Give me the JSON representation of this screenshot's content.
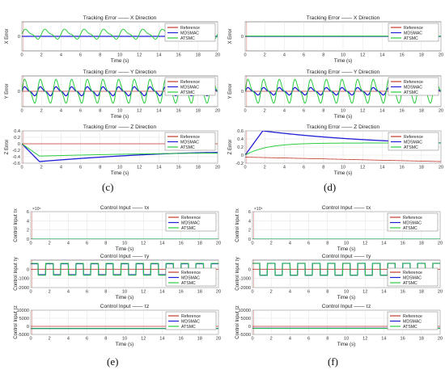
{
  "figure": {
    "panel_labels": [
      "(c)",
      "(d)",
      "(e)",
      "(f)"
    ],
    "legend": [
      "Reference",
      "MDSMAC",
      "ATSMC"
    ],
    "colors": {
      "Reference": "#c0392b",
      "MDSMAC": "#1f1fd6",
      "ATSMC": "#2ecc40"
    }
  },
  "chart_data": [
    {
      "type": "line",
      "panel": "c",
      "title": "Tracking Error —— X Direction",
      "xlabel": "Time (s)",
      "ylabel": "X Error",
      "xlim": [
        0,
        20
      ],
      "ylim": [
        -1,
        1
      ],
      "yticks": [
        "0"
      ],
      "xticks": [
        "0",
        "2",
        "4",
        "6",
        "8",
        "10",
        "12",
        "14",
        "16",
        "18",
        "20"
      ],
      "legend": "top-right",
      "grid": true,
      "series": [
        {
          "name": "Reference",
          "kind": "flat",
          "value": 0
        },
        {
          "name": "MDSMAC",
          "kind": "flat",
          "value": 0
        },
        {
          "name": "ATSMC",
          "kind": "osc",
          "amp": 0.35,
          "period": 2.0,
          "bias": 0.15
        }
      ]
    },
    {
      "type": "line",
      "panel": "c",
      "title": "Tracking Error —— Y Direction",
      "xlabel": "Time (s)",
      "ylabel": "Y Error",
      "xlim": [
        0,
        20
      ],
      "ylim": [
        -1,
        1
      ],
      "yticks": [
        "0"
      ],
      "xticks": [
        "0",
        "2",
        "4",
        "6",
        "8",
        "10",
        "12",
        "14",
        "16",
        "18",
        "20"
      ],
      "legend": "top-right",
      "grid": true,
      "series": [
        {
          "name": "Reference",
          "kind": "flat",
          "value": 0
        },
        {
          "name": "MDSMAC",
          "kind": "osc",
          "amp": 0.3,
          "period": 1.6,
          "bias": 0
        },
        {
          "name": "ATSMC",
          "kind": "osc",
          "amp": 0.8,
          "period": 1.6,
          "bias": 0
        }
      ]
    },
    {
      "type": "line",
      "panel": "c",
      "title": "Tracking Error —— Z Direction",
      "xlabel": "Time (s)",
      "ylabel": "Z Error",
      "xlim": [
        0,
        20
      ],
      "ylim": [
        -0.6,
        0.4
      ],
      "yticks": [
        "0.4",
        "0.2",
        "0",
        "-0.2",
        "-0.4",
        "-0.6"
      ],
      "xticks": [
        "0",
        "2",
        "4",
        "6",
        "8",
        "10",
        "12",
        "14",
        "16",
        "18",
        "20"
      ],
      "legend": "top-right",
      "grid": true,
      "series": [
        {
          "name": "Reference",
          "kind": "flat",
          "value": 0
        },
        {
          "name": "MDSMAC",
          "kind": "decay",
          "x0": 1.8,
          "y0": -0.55,
          "yend": -0.27
        },
        {
          "name": "ATSMC",
          "kind": "decay",
          "x0": 1.8,
          "y0": -0.38,
          "yend": -0.29
        }
      ]
    },
    {
      "type": "line",
      "panel": "d",
      "title": "Tracking Error —— X Direction",
      "xlabel": "Time (s)",
      "ylabel": "X Error",
      "xlim": [
        0,
        20
      ],
      "ylim": [
        -1,
        1
      ],
      "yticks": [
        "0"
      ],
      "xticks": [
        "0",
        "2",
        "4",
        "6",
        "8",
        "10",
        "12",
        "14",
        "16",
        "18",
        "20"
      ],
      "legend": "top-right",
      "grid": true,
      "series": [
        {
          "name": "Reference",
          "kind": "flat",
          "value": 0
        },
        {
          "name": "MDSMAC",
          "kind": "flat",
          "value": 0
        },
        {
          "name": "ATSMC",
          "kind": "flat",
          "value": 0.02
        }
      ]
    },
    {
      "type": "line",
      "panel": "d",
      "title": "Tracking Error —— Y Direction",
      "xlabel": "Time (s)",
      "ylabel": "Y Error",
      "xlim": [
        0,
        20
      ],
      "ylim": [
        -1,
        1
      ],
      "yticks": [
        "0"
      ],
      "xticks": [
        "0",
        "2",
        "4",
        "6",
        "8",
        "10",
        "12",
        "14",
        "16",
        "18",
        "20"
      ],
      "legend": "top-right",
      "grid": true,
      "series": [
        {
          "name": "Reference",
          "kind": "flat",
          "value": 0
        },
        {
          "name": "MDSMAC",
          "kind": "osc",
          "amp": 0.25,
          "period": 1.6,
          "bias": 0
        },
        {
          "name": "ATSMC",
          "kind": "osc",
          "amp": 0.8,
          "period": 1.6,
          "bias": 0
        }
      ]
    },
    {
      "type": "line",
      "panel": "d",
      "title": "Tracking Error —— Z Direction",
      "xlabel": "Time (s)",
      "ylabel": "Z Error",
      "xlim": [
        0,
        20
      ],
      "ylim": [
        -0.2,
        0.6
      ],
      "yticks": [
        "0.6",
        "0.4",
        "0.2",
        "0",
        "-0.2"
      ],
      "xticks": [
        "0",
        "2",
        "4",
        "6",
        "8",
        "10",
        "12",
        "14",
        "16",
        "18",
        "20"
      ],
      "legend": "top-right",
      "grid": true,
      "series": [
        {
          "name": "Reference",
          "kind": "drift",
          "y0": -0.05,
          "yend": -0.16
        },
        {
          "name": "MDSMAC",
          "kind": "peak",
          "x0": 1.8,
          "ypeak": 0.6,
          "yend": 0.3
        },
        {
          "name": "ATSMC",
          "kind": "rise",
          "yend": 0.3
        }
      ]
    },
    {
      "type": "line",
      "panel": "e",
      "title": "Control Input —— τx",
      "xlabel": "Time (s)",
      "ylabel": "Control Input τx",
      "xlim": [
        0,
        20
      ],
      "ylim": [
        0,
        6
      ],
      "multiplier": "×10⁵",
      "yticks": [
        "6",
        "4",
        "2",
        "0"
      ],
      "xticks": [
        "0",
        "2",
        "4",
        "6",
        "8",
        "10",
        "12",
        "14",
        "16",
        "18",
        "20"
      ],
      "legend": "top-right",
      "grid": true,
      "series": [
        {
          "name": "Reference",
          "kind": "flat",
          "value": 0
        },
        {
          "name": "MDSMAC",
          "kind": "flat",
          "value": 0
        },
        {
          "name": "ATSMC",
          "kind": "flat",
          "value": 0
        }
      ]
    },
    {
      "type": "line",
      "panel": "e",
      "title": "Control Input —— τy",
      "xlabel": "Time (s)",
      "ylabel": "Control Input τy",
      "xlim": [
        0,
        20
      ],
      "ylim": [
        -2000,
        1000
      ],
      "yticks": [
        "0",
        "-1000",
        "-2000"
      ],
      "xticks": [
        "0",
        "2",
        "4",
        "6",
        "8",
        "10",
        "12",
        "14",
        "16",
        "18",
        "20"
      ],
      "legend": "right",
      "grid": true,
      "series": [
        {
          "name": "Reference",
          "kind": "flat",
          "value": 0
        },
        {
          "name": "MDSMAC",
          "kind": "square",
          "amp": 600,
          "period": 1.6,
          "bias": 0
        },
        {
          "name": "ATSMC",
          "kind": "square",
          "amp": 650,
          "period": 1.6,
          "bias": 0
        }
      ]
    },
    {
      "type": "line",
      "panel": "e",
      "title": "Control Input —— τz",
      "xlabel": "Time (s)",
      "ylabel": "Control Input τz",
      "xlim": [
        0,
        20
      ],
      "ylim": [
        -5000,
        10000
      ],
      "yticks": [
        "10000",
        "5000",
        "0",
        "-5000"
      ],
      "xticks": [
        "0",
        "2",
        "4",
        "6",
        "8",
        "10",
        "12",
        "14",
        "16",
        "18",
        "20"
      ],
      "legend": "top-right",
      "grid": true,
      "series": [
        {
          "name": "Reference",
          "kind": "flat",
          "value": 0
        },
        {
          "name": "MDSMAC",
          "kind": "flat",
          "value": -1300
        },
        {
          "name": "ATSMC",
          "kind": "flat",
          "value": -1400
        }
      ]
    },
    {
      "type": "line",
      "panel": "f",
      "title": "Control Input —— τx",
      "xlabel": "Time (s)",
      "ylabel": "Control Input τx",
      "xlim": [
        0,
        20
      ],
      "ylim": [
        0,
        6
      ],
      "multiplier": "×10⁵",
      "yticks": [
        "6",
        "4",
        "2",
        "0"
      ],
      "xticks": [
        "0",
        "2",
        "4",
        "6",
        "8",
        "10",
        "12",
        "14",
        "16",
        "18",
        "20"
      ],
      "legend": "top-right",
      "grid": true,
      "series": [
        {
          "name": "Reference",
          "kind": "flat",
          "value": 0
        },
        {
          "name": "MDSMAC",
          "kind": "flat",
          "value": 0
        },
        {
          "name": "ATSMC",
          "kind": "flat",
          "value": 0
        }
      ]
    },
    {
      "type": "line",
      "panel": "f",
      "title": "Control Input —— τy",
      "xlabel": "Time (s)",
      "ylabel": "Control Input τy",
      "xlim": [
        0,
        20
      ],
      "ylim": [
        -2000,
        1000
      ],
      "yticks": [
        "0",
        "-1000",
        "-2000"
      ],
      "xticks": [
        "0",
        "2",
        "4",
        "6",
        "8",
        "10",
        "12",
        "14",
        "16",
        "18",
        "20"
      ],
      "legend": "right",
      "grid": true,
      "series": [
        {
          "name": "Reference",
          "kind": "flat",
          "value": 0
        },
        {
          "name": "MDSMAC",
          "kind": "square",
          "amp": 650,
          "period": 1.6,
          "bias": 0
        },
        {
          "name": "ATSMC",
          "kind": "square",
          "amp": 650,
          "period": 1.6,
          "bias": 0
        }
      ]
    },
    {
      "type": "line",
      "panel": "f",
      "title": "Control Input —— τz",
      "xlabel": "Time (s)",
      "ylabel": "Control Input τz",
      "xlim": [
        0,
        20
      ],
      "ylim": [
        -5000,
        10000
      ],
      "yticks": [
        "10000",
        "5000",
        "0",
        "-5000"
      ],
      "xticks": [
        "0",
        "2",
        "4",
        "6",
        "8",
        "10",
        "12",
        "14",
        "16",
        "18",
        "20"
      ],
      "legend": "top-right",
      "grid": true,
      "series": [
        {
          "name": "Reference",
          "kind": "flat",
          "value": 0
        },
        {
          "name": "MDSMAC",
          "kind": "flat",
          "value": -1200
        },
        {
          "name": "ATSMC",
          "kind": "flat",
          "value": -1300
        }
      ]
    }
  ]
}
